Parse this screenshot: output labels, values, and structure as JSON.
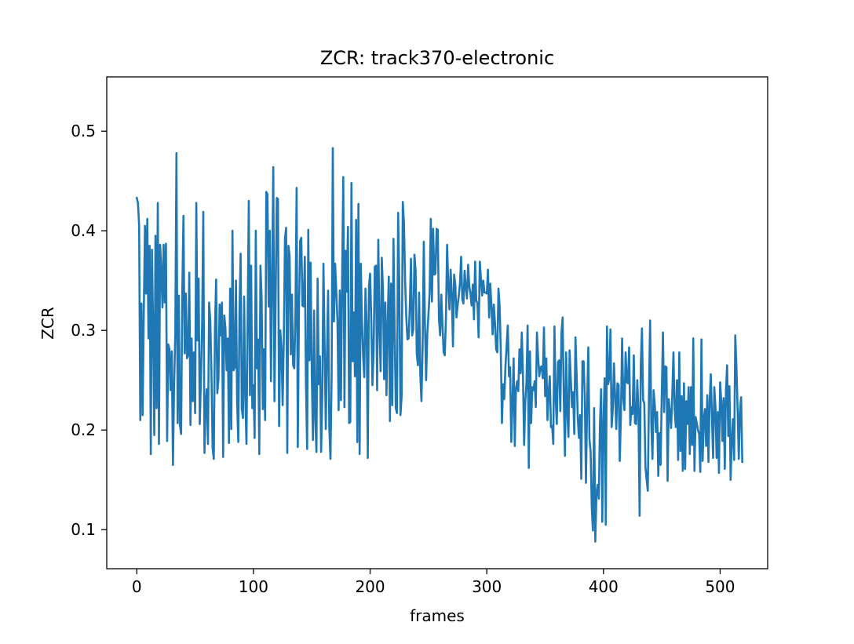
{
  "chart_data": {
    "type": "line",
    "title": "ZCR: track370-electronic",
    "xlabel": "frames",
    "ylabel": "ZCR",
    "xlim": [
      -25.75,
      540.75
    ],
    "ylim": [
      0.0608,
      0.5545
    ],
    "xticks": [
      0,
      100,
      200,
      300,
      400,
      500
    ],
    "yticks": [
      0.1,
      0.2,
      0.3,
      0.4,
      0.5
    ],
    "xtick_labels": [
      "0",
      "100",
      "200",
      "300",
      "400",
      "500"
    ],
    "ytick_labels": [
      "0.1",
      "0.2",
      "0.3",
      "0.4",
      "0.5"
    ],
    "grid": false,
    "line_color": "#1f77b4",
    "series": [
      {
        "x_start": 0,
        "x_step": 1,
        "values": [
          0.433,
          0.428,
          0.405,
          0.21,
          0.327,
          0.215,
          0.318,
          0.405,
          0.337,
          0.412,
          0.292,
          0.385,
          0.176,
          0.381,
          0.301,
          0.195,
          0.395,
          0.222,
          0.428,
          0.186,
          0.386,
          0.362,
          0.323,
          0.386,
          0.328,
          0.387,
          0.189,
          0.286,
          0.281,
          0.24,
          0.279,
          0.165,
          0.246,
          0.297,
          0.478,
          0.207,
          0.335,
          0.205,
          0.196,
          0.339,
          0.415,
          0.277,
          0.337,
          0.272,
          0.275,
          0.358,
          0.205,
          0.292,
          0.229,
          0.278,
          0.217,
          0.428,
          0.29,
          0.352,
          0.206,
          0.254,
          0.306,
          0.419,
          0.177,
          0.225,
          0.241,
          0.186,
          0.328,
          0.31,
          0.257,
          0.182,
          0.171,
          0.302,
          0.351,
          0.237,
          0.251,
          0.326,
          0.295,
          0.328,
          0.173,
          0.315,
          0.302,
          0.26,
          0.292,
          0.187,
          0.342,
          0.201,
          0.4,
          0.26,
          0.263,
          0.35,
          0.228,
          0.188,
          0.317,
          0.377,
          0.221,
          0.212,
          0.334,
          0.234,
          0.186,
          0.308,
          0.43,
          0.235,
          0.365,
          0.222,
          0.245,
          0.192,
          0.4,
          0.262,
          0.291,
          0.176,
          0.365,
          0.333,
          0.221,
          0.281,
          0.21,
          0.439,
          0.437,
          0.324,
          0.4,
          0.249,
          0.351,
          0.464,
          0.229,
          0.331,
          0.433,
          0.432,
          0.204,
          0.3,
          0.283,
          0.225,
          0.29,
          0.392,
          0.403,
          0.177,
          0.385,
          0.375,
          0.276,
          0.336,
          0.265,
          0.262,
          0.318,
          0.443,
          0.183,
          0.319,
          0.39,
          0.393,
          0.325,
          0.324,
          0.374,
          0.247,
          0.181,
          0.401,
          0.27,
          0.368,
          0.256,
          0.19,
          0.32,
          0.211,
          0.178,
          0.352,
          0.246,
          0.274,
          0.178,
          0.234,
          0.367,
          0.285,
          0.201,
          0.276,
          0.34,
          0.203,
          0.171,
          0.254,
          0.483,
          0.309,
          0.367,
          0.34,
          0.31,
          0.22,
          0.34,
          0.23,
          0.353,
          0.454,
          0.223,
          0.38,
          0.339,
          0.404,
          0.207,
          0.208,
          0.448,
          0.269,
          0.318,
          0.254,
          0.411,
          0.188,
          0.427,
          0.176,
          0.367,
          0.31,
          0.274,
          0.253,
          0.342,
          0.306,
          0.172,
          0.345,
          0.357,
          0.311,
          0.245,
          0.28,
          0.364,
          0.365,
          0.24,
          0.391,
          0.303,
          0.259,
          0.373,
          0.341,
          0.251,
          0.328,
          0.235,
          0.307,
          0.354,
          0.209,
          0.347,
          0.225,
          0.392,
          0.303,
          0.222,
          0.217,
          0.418,
          0.349,
          0.215,
          0.234,
          0.429,
          0.408,
          0.35,
          0.313,
          0.291,
          0.292,
          0.323,
          0.372,
          0.295,
          0.301,
          0.376,
          0.36,
          0.276,
          0.265,
          0.338,
          0.256,
          0.229,
          0.285,
          0.389,
          0.306,
          0.25,
          0.296,
          0.316,
          0.338,
          0.412,
          0.329,
          0.402,
          0.356,
          0.357,
          0.402,
          0.401,
          0.312,
          0.295,
          0.336,
          0.306,
          0.278,
          0.275,
          0.313,
          0.386,
          0.345,
          0.321,
          0.361,
          0.337,
          0.284,
          0.356,
          0.346,
          0.313,
          0.325,
          0.335,
          0.347,
          0.374,
          0.331,
          0.327,
          0.36,
          0.343,
          0.332,
          0.366,
          0.344,
          0.337,
          0.325,
          0.346,
          0.311,
          0.369,
          0.33,
          0.327,
          0.293,
          0.369,
          0.352,
          0.335,
          0.35,
          0.338,
          0.338,
          0.337,
          0.361,
          0.313,
          0.347,
          0.324,
          0.296,
          0.326,
          0.308,
          0.281,
          0.278,
          0.342,
          0.325,
          0.28,
          0.207,
          0.246,
          0.231,
          0.264,
          0.285,
          0.305,
          0.254,
          0.263,
          0.188,
          0.227,
          0.272,
          0.184,
          0.241,
          0.249,
          0.239,
          0.281,
          0.257,
          0.298,
          0.256,
          0.185,
          0.229,
          0.247,
          0.305,
          0.162,
          0.279,
          0.207,
          0.243,
          0.24,
          0.249,
          0.223,
          0.298,
          0.273,
          0.254,
          0.263,
          0.264,
          0.252,
          0.303,
          0.234,
          0.272,
          0.21,
          0.237,
          0.254,
          0.203,
          0.204,
          0.186,
          0.304,
          0.232,
          0.206,
          0.268,
          0.27,
          0.219,
          0.297,
          0.313,
          0.232,
          0.174,
          0.278,
          0.218,
          0.193,
          0.28,
          0.252,
          0.223,
          0.238,
          0.196,
          0.293,
          0.256,
          0.212,
          0.192,
          0.215,
          0.151,
          0.269,
          0.269,
          0.234,
          0.147,
          0.226,
          0.283,
          0.191,
          0.178,
          0.122,
          0.099,
          0.222,
          0.088,
          0.136,
          0.145,
          0.131,
          0.206,
          0.241,
          0.108,
          0.208,
          0.252,
          0.105,
          0.304,
          0.246,
          0.252,
          0.301,
          0.203,
          0.221,
          0.267,
          0.234,
          0.201,
          0.247,
          0.245,
          0.169,
          0.216,
          0.292,
          0.232,
          0.22,
          0.278,
          0.248,
          0.247,
          0.283,
          0.205,
          0.223,
          0.216,
          0.275,
          0.207,
          0.206,
          0.25,
          0.218,
          0.114,
          0.265,
          0.302,
          0.23,
          0.227,
          0.163,
          0.15,
          0.139,
          0.234,
          0.31,
          0.207,
          0.171,
          0.24,
          0.225,
          0.198,
          0.218,
          0.154,
          0.197,
          0.165,
          0.236,
          0.298,
          0.218,
          0.264,
          0.263,
          0.149,
          0.231,
          0.217,
          0.202,
          0.236,
          0.278,
          0.221,
          0.203,
          0.25,
          0.17,
          0.278,
          0.179,
          0.234,
          0.159,
          0.247,
          0.161,
          0.229,
          0.206,
          0.243,
          0.176,
          0.243,
          0.185,
          0.292,
          0.159,
          0.213,
          0.207,
          0.2,
          0.196,
          0.158,
          0.291,
          0.169,
          0.21,
          0.221,
          0.184,
          0.235,
          0.168,
          0.228,
          0.256,
          0.213,
          0.172,
          0.243,
          0.223,
          0.172,
          0.218,
          0.157,
          0.248,
          0.229,
          0.189,
          0.232,
          0.161,
          0.24,
          0.265,
          0.194,
          0.244,
          0.15,
          0.19,
          0.211,
          0.17,
          0.295,
          0.263,
          0.221,
          0.171,
          0.219,
          0.233,
          0.168
        ]
      }
    ]
  }
}
